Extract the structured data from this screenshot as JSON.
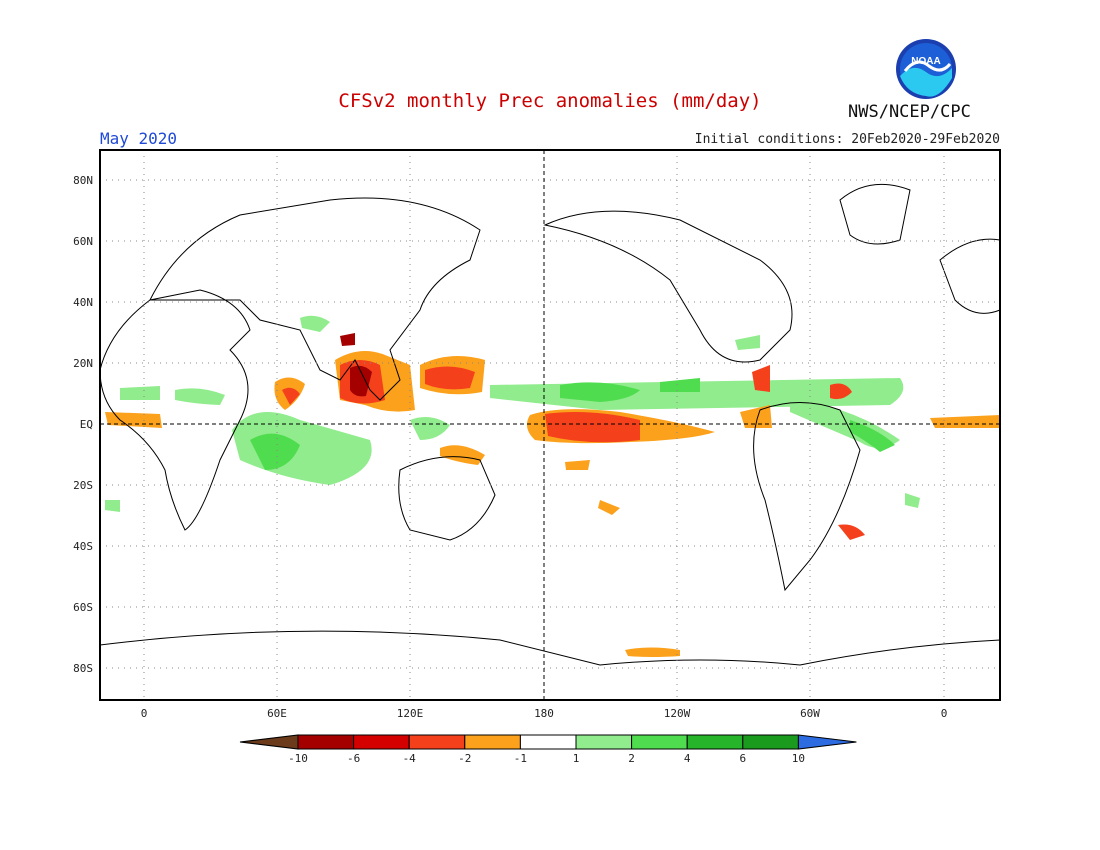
{
  "header": {
    "title": "CFSv2 monthly Prec anomalies (mm/day)",
    "month": "May 2020",
    "initial_conditions": "Initial conditions: 20Feb2020-29Feb2020",
    "org": "NWS/NCEP/CPC",
    "logo_text": "NOAA"
  },
  "map": {
    "projection": "equirectangular",
    "lat_labels": [
      "80N",
      "60N",
      "40N",
      "20N",
      "EQ",
      "20S",
      "40S",
      "60S",
      "80S"
    ],
    "lon_labels": [
      "0",
      "60E",
      "120E",
      "180",
      "120W",
      "60W",
      "0"
    ],
    "grid": "dotted",
    "reference_lines": [
      "EQ",
      "180"
    ]
  },
  "colorbar": {
    "labels": [
      "-10",
      "-6",
      "-4",
      "-2",
      "-1",
      "1",
      "2",
      "4",
      "6",
      "10"
    ],
    "colors": [
      "#6b3b1b",
      "#a50000",
      "#d40000",
      "#f5401c",
      "#fba11c",
      "#ffffff",
      "#90ec8c",
      "#4fdd4f",
      "#26b42a",
      "#1a9b1e",
      "#2c6be0"
    ]
  }
}
